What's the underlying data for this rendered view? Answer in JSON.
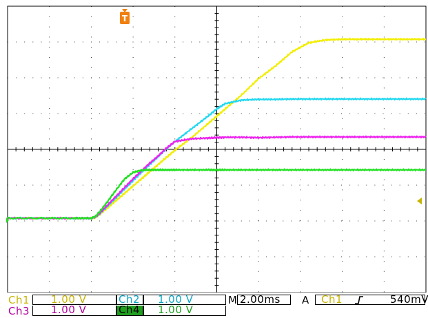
{
  "chart_data": {
    "type": "line",
    "x_divisions": 10,
    "y_divisions": 8,
    "grid": true,
    "trigger_marker": "T",
    "trigger_level_marker": "◄",
    "x_unit": "ms",
    "y_unit": "V",
    "x": [
      0,
      0.8,
      1.6,
      2.0,
      2.1,
      2.2,
      2.4,
      2.6,
      2.8,
      3.0,
      3.2,
      3.4,
      3.6,
      3.8,
      4.0,
      4.4,
      4.8,
      5.0,
      5.2,
      5.6,
      6.0,
      6.4,
      6.8,
      7.2,
      7.6,
      8.0,
      8.4,
      8.8,
      9.2,
      9.6,
      10.0
    ],
    "series": [
      {
        "channel": "Ch1",
        "color": "#f2ee00",
        "values": [
          0.0,
          0.0,
          0.0,
          0.0,
          0.02,
          0.1,
          0.3,
          0.5,
          0.7,
          0.9,
          1.1,
          1.3,
          1.5,
          1.7,
          1.9,
          2.25,
          2.65,
          2.85,
          3.05,
          3.45,
          3.9,
          4.25,
          4.65,
          4.9,
          4.98,
          5.0,
          5.0,
          5.0,
          5.0,
          5.0,
          5.0
        ]
      },
      {
        "channel": "Ch2",
        "color": "#22d8f0",
        "values": [
          0.0,
          0.0,
          0.0,
          0.0,
          0.03,
          0.12,
          0.35,
          0.58,
          0.82,
          1.05,
          1.28,
          1.5,
          1.72,
          1.94,
          2.14,
          2.5,
          2.86,
          3.05,
          3.2,
          3.3,
          3.32,
          3.32,
          3.33,
          3.33,
          3.33,
          3.33,
          3.33,
          3.33,
          3.33,
          3.33,
          3.33
        ]
      },
      {
        "channel": "Ch3",
        "color": "#ee22ee",
        "values": [
          0.0,
          0.0,
          0.0,
          0.0,
          0.04,
          0.14,
          0.38,
          0.62,
          0.86,
          1.1,
          1.32,
          1.54,
          1.74,
          1.96,
          2.14,
          2.22,
          2.24,
          2.25,
          2.26,
          2.26,
          2.25,
          2.26,
          2.27,
          2.27,
          2.27,
          2.27,
          2.27,
          2.27,
          2.27,
          2.27,
          2.27
        ]
      },
      {
        "channel": "Ch4",
        "color": "#22e022",
        "values": [
          0.0,
          0.0,
          0.0,
          0.0,
          0.05,
          0.18,
          0.48,
          0.8,
          1.1,
          1.28,
          1.34,
          1.35,
          1.35,
          1.35,
          1.35,
          1.35,
          1.35,
          1.35,
          1.35,
          1.35,
          1.35,
          1.35,
          1.35,
          1.35,
          1.35,
          1.35,
          1.35,
          1.35,
          1.35,
          1.35,
          1.35
        ]
      }
    ]
  },
  "status": {
    "ch1_label": "Ch1",
    "ch1_scale": "1.00 V",
    "ch2_label": "Ch2",
    "ch2_scale": "1.00 V",
    "ch3_label": "Ch3",
    "ch3_scale": "1.00 V",
    "ch4_label": "Ch4",
    "ch4_scale": "1.00 V",
    "m_label": "M",
    "timebase": "2.00ms",
    "trigger_mode": "A",
    "trigger_source": "Ch1",
    "trigger_slope_icon": "rising-edge-icon",
    "trigger_level": "540mV"
  },
  "colors": {
    "ch1": "#c8b400",
    "ch2": "#0aa8c8",
    "ch3": "#b0009c",
    "ch4_bg": "#1ea01e",
    "trigger_marker": "#f08010",
    "trigger_level_marker": "#c8b400",
    "grid": "#000000"
  }
}
